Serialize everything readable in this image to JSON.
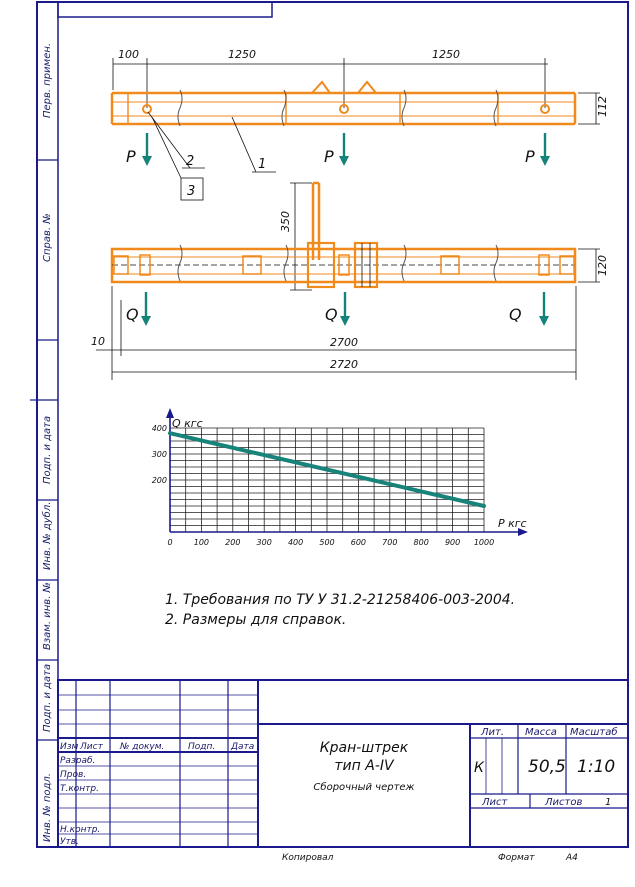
{
  "left_strip": {
    "perv_primen": "Перв. примен.",
    "sprav_no": "Справ. №",
    "podp_data_1": "Подп. и дата",
    "inv_dubl": "Инв. № дубл.",
    "vzam_inv": "Взам. инв. №",
    "podp_data_2": "Подп. и дата",
    "inv_podl": "Инв. № подл."
  },
  "top_view": {
    "dims": {
      "d100": "100",
      "d1250_a": "1250",
      "d1250_b": "1250",
      "d112": "112"
    },
    "load_label": "P",
    "leaders": [
      "2",
      "1",
      "3"
    ]
  },
  "bottom_view": {
    "dims": {
      "d350": "350",
      "d120": "120",
      "d10": "10",
      "d2700": "2700",
      "d2720": "2720"
    },
    "load_label": "Q"
  },
  "chart_data": {
    "type": "line",
    "xlabel": "P кгс",
    "ylabel": "Q кгс",
    "xticks": [
      "0",
      "100",
      "200",
      "300",
      "400",
      "500",
      "600",
      "700",
      "800",
      "900",
      "1000"
    ],
    "yticks": [
      "200",
      "300",
      "400"
    ],
    "xlim": [
      0,
      1000
    ],
    "ylim": [
      100,
      400
    ],
    "grid": true,
    "series": [
      {
        "x": [
          0,
          1000
        ],
        "y": [
          380,
          100
        ]
      }
    ],
    "line_color": "#17837a"
  },
  "notes": [
    "1. Требования по ТУ У 31.2-21258406-003-2004.",
    "2. Размеры для справок."
  ],
  "title_block": {
    "col_headers": {
      "izm": "Изм",
      "list": "Лист",
      "doc": "№ докум.",
      "podp": "Подп.",
      "data": "Дата"
    },
    "rows": {
      "razrab": "Разраб.",
      "prov": "Пров.",
      "tkontr": "Т.контр.",
      "nkontr": "Н.контр.",
      "utv": "Утв."
    },
    "name_line1": "Кран-штрек",
    "name_line2": "тип А-IV",
    "doc_type": "Сборочный чертеж",
    "lit_header": "Лит.",
    "lit_value": "К",
    "massa_header": "Масса",
    "massa_value": "50,5",
    "masshtab_header": "Масштаб",
    "masshtab_value": "1:10",
    "list_label": "Лист",
    "listov_label": "Листов",
    "listov_value": "1",
    "kopiroval": "Копировал",
    "format_label": "Формат",
    "format_value": "А4"
  },
  "colors": {
    "frame": "#1a1a8c",
    "part": "#f08a1c",
    "arrow": "#14837a",
    "chart_line": "#17837a"
  }
}
